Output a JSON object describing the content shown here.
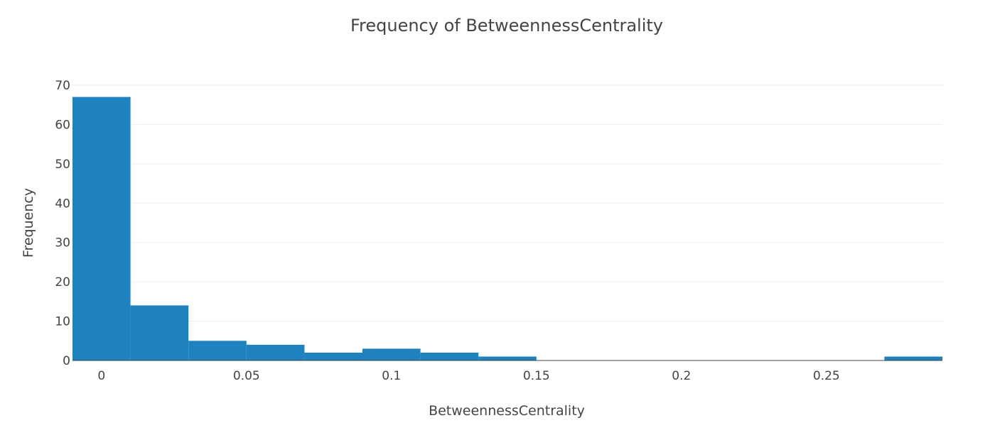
{
  "chart_data": {
    "type": "bar",
    "title": "Frequency of BetweennessCentrality",
    "xlabel": "BetweennessCentrality",
    "ylabel": "Frequency",
    "bin_width": 0.02,
    "bins": [
      {
        "x0": -0.01,
        "x1": 0.01,
        "count": 67
      },
      {
        "x0": 0.01,
        "x1": 0.03,
        "count": 14
      },
      {
        "x0": 0.03,
        "x1": 0.05,
        "count": 5
      },
      {
        "x0": 0.05,
        "x1": 0.07,
        "count": 4
      },
      {
        "x0": 0.07,
        "x1": 0.09,
        "count": 2
      },
      {
        "x0": 0.09,
        "x1": 0.11,
        "count": 3
      },
      {
        "x0": 0.11,
        "x1": 0.13,
        "count": 2
      },
      {
        "x0": 0.13,
        "x1": 0.15,
        "count": 1
      },
      {
        "x0": 0.15,
        "x1": 0.17,
        "count": 0
      },
      {
        "x0": 0.17,
        "x1": 0.19,
        "count": 0
      },
      {
        "x0": 0.19,
        "x1": 0.21,
        "count": 0
      },
      {
        "x0": 0.21,
        "x1": 0.23,
        "count": 0
      },
      {
        "x0": 0.23,
        "x1": 0.25,
        "count": 0
      },
      {
        "x0": 0.25,
        "x1": 0.27,
        "count": 0
      },
      {
        "x0": 0.27,
        "x1": 0.29,
        "count": 1
      }
    ],
    "xlim": [
      -0.01,
      0.29
    ],
    "ylim": [
      0,
      70
    ],
    "xticks": [
      0,
      0.05,
      0.1,
      0.15,
      0.2,
      0.25
    ],
    "xtick_labels": [
      "0",
      "0.05",
      "0.1",
      "0.15",
      "0.2",
      "0.25"
    ],
    "yticks": [
      0,
      10,
      20,
      30,
      40,
      50,
      60,
      70
    ],
    "ytick_labels": [
      "0",
      "10",
      "20",
      "30",
      "40",
      "50",
      "60",
      "70"
    ],
    "grid": true,
    "colors": {
      "bar": "#1f82c0",
      "grid": "#eeeeee",
      "axis_line": "#444444",
      "text": "#444444"
    }
  }
}
